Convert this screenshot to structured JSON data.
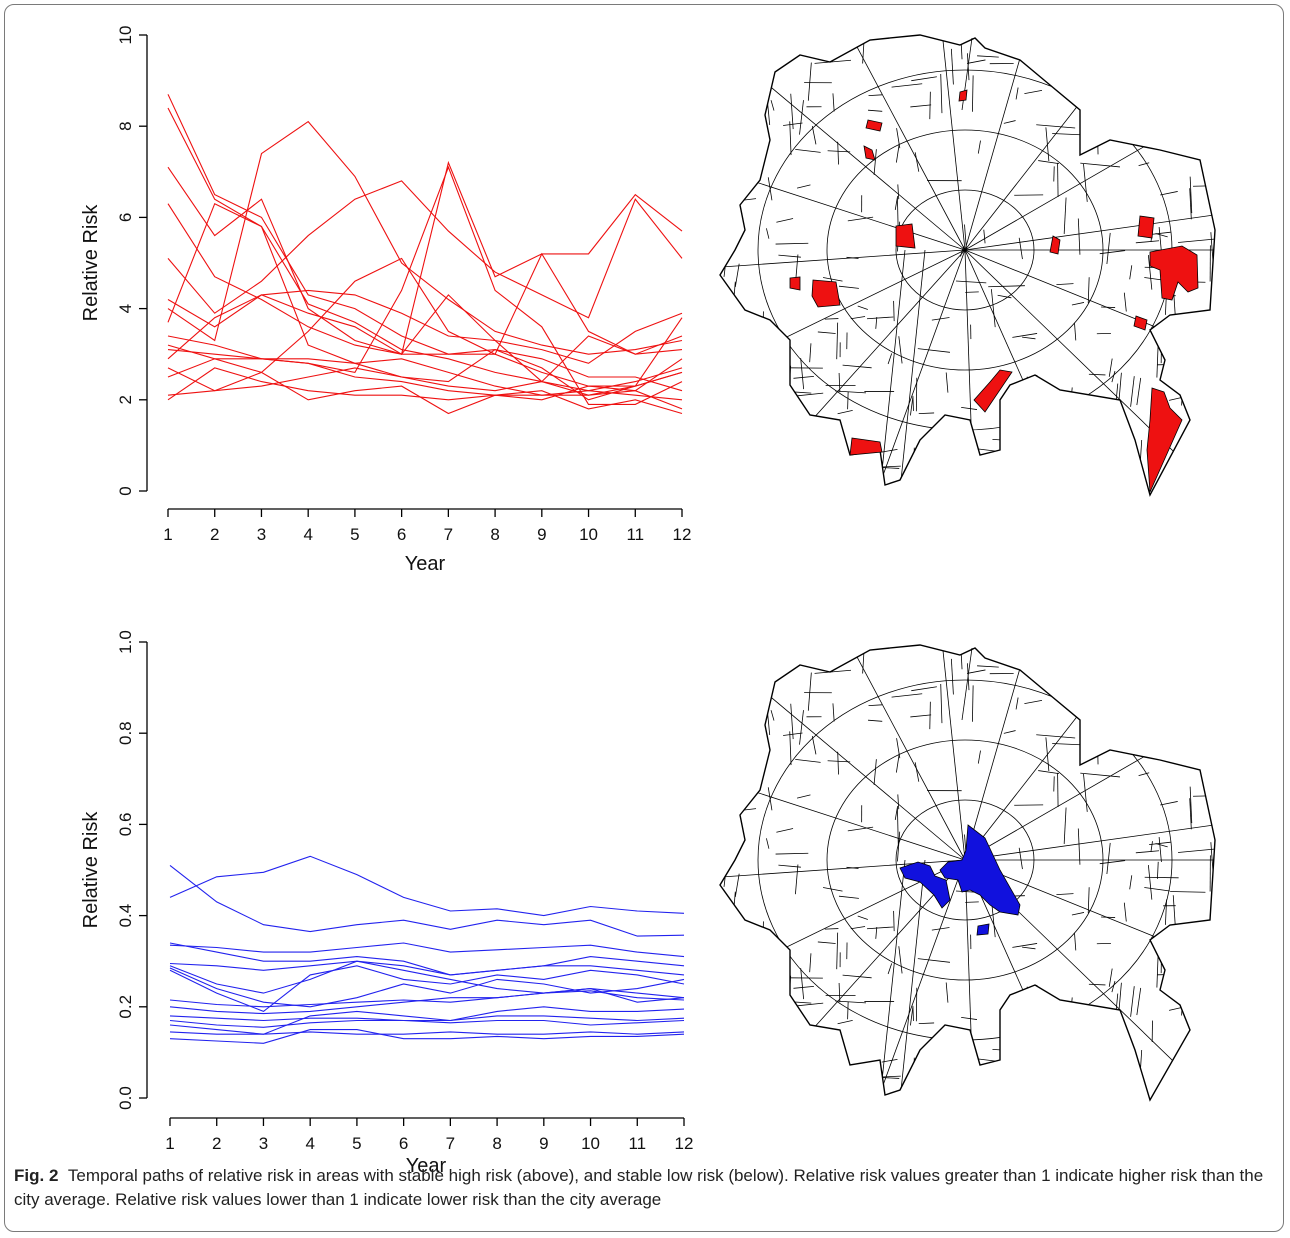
{
  "caption": {
    "label": "Fig. 2",
    "text": "Temporal paths of relative risk in areas with stable high risk (above), and stable low risk (below). Relative risk values greater than 1 indicate higher risk than the city average. Relative risk values lower than 1 indicate lower risk than the city average"
  },
  "colors": {
    "high": "#ee1111",
    "low": "#2222ee",
    "map_high_fill": "#ee1111",
    "map_low_fill": "#1111dd"
  },
  "chart_data": [
    {
      "type": "line",
      "xlabel": "Year",
      "ylabel": "Relative Risk",
      "x": [
        1,
        2,
        3,
        4,
        5,
        6,
        7,
        8,
        9,
        10,
        11,
        12
      ],
      "xlim": [
        1,
        12
      ],
      "ylim": [
        0,
        10
      ],
      "yticks": [
        0,
        2,
        4,
        6,
        8,
        10
      ],
      "ytick_labels": [
        "0",
        "2",
        "4",
        "6",
        "8",
        "10"
      ],
      "grid": false,
      "color": "#ee1111",
      "series": [
        {
          "values": [
            8.7,
            6.5,
            6.0,
            4.3,
            4.0,
            3.4,
            3.0,
            3.0,
            2.6,
            2.3,
            2.3,
            3.8
          ]
        },
        {
          "values": [
            8.4,
            6.4,
            5.8,
            4.1,
            3.7,
            3.1,
            2.9,
            2.6,
            2.4,
            2.2,
            2.1,
            2.0
          ]
        },
        {
          "values": [
            7.1,
            5.6,
            6.4,
            4.0,
            3.3,
            3.0,
            3.0,
            3.1,
            2.9,
            2.5,
            2.5,
            2.2
          ]
        },
        {
          "values": [
            6.3,
            4.7,
            4.2,
            3.6,
            3.2,
            3.0,
            7.2,
            4.7,
            5.2,
            5.2,
            6.5,
            5.7
          ]
        },
        {
          "values": [
            5.1,
            3.9,
            4.6,
            5.6,
            6.4,
            6.8,
            5.7,
            4.8,
            4.3,
            3.8,
            6.4,
            5.1
          ]
        },
        {
          "values": [
            4.2,
            3.6,
            4.3,
            4.4,
            4.3,
            3.9,
            3.4,
            3.3,
            3.1,
            2.8,
            3.5,
            3.9
          ]
        },
        {
          "values": [
            4.0,
            3.3,
            7.4,
            8.1,
            6.9,
            5.0,
            4.2,
            3.5,
            3.2,
            3.0,
            3.1,
            3.3
          ]
        },
        {
          "values": [
            3.7,
            6.3,
            5.8,
            3.2,
            2.8,
            2.5,
            2.4,
            3.1,
            2.7,
            2.0,
            2.3,
            2.6
          ]
        },
        {
          "values": [
            3.4,
            3.2,
            2.9,
            2.8,
            2.6,
            4.4,
            7.1,
            4.4,
            3.6,
            1.9,
            1.9,
            2.4
          ]
        },
        {
          "values": [
            3.2,
            2.9,
            2.9,
            2.9,
            2.8,
            2.9,
            2.6,
            2.3,
            2.1,
            2.1,
            2.2,
            2.9
          ]
        },
        {
          "values": [
            3.1,
            3.0,
            2.9,
            2.8,
            2.5,
            2.4,
            2.2,
            2.1,
            2.1,
            2.2,
            2.4,
            2.7
          ]
        },
        {
          "values": [
            2.9,
            3.8,
            4.3,
            3.9,
            3.6,
            3.0,
            4.3,
            3.3,
            2.4,
            2.1,
            2.3,
            2.6
          ]
        },
        {
          "values": [
            2.7,
            2.2,
            2.3,
            2.5,
            2.7,
            2.5,
            2.3,
            2.2,
            2.4,
            3.4,
            3.0,
            3.4
          ]
        },
        {
          "values": [
            2.5,
            2.9,
            2.6,
            2.0,
            2.2,
            2.3,
            1.7,
            2.1,
            2.0,
            2.3,
            2.2,
            1.8
          ]
        },
        {
          "values": [
            2.0,
            2.7,
            2.4,
            2.2,
            2.1,
            2.1,
            2.0,
            2.1,
            2.2,
            1.8,
            2.0,
            1.7
          ]
        },
        {
          "values": [
            2.1,
            2.2,
            2.6,
            3.5,
            4.6,
            5.1,
            3.5,
            3.0,
            5.2,
            3.5,
            3.0,
            3.1
          ]
        }
      ]
    },
    {
      "type": "line",
      "xlabel": "Year",
      "ylabel": "Relative Risk",
      "x": [
        1,
        2,
        3,
        4,
        5,
        6,
        7,
        8,
        9,
        10,
        11,
        12
      ],
      "xlim": [
        1,
        12
      ],
      "ylim": [
        0,
        1
      ],
      "yticks": [
        0,
        0.2,
        0.4,
        0.6,
        0.8,
        1.0
      ],
      "ytick_labels": [
        "0.0",
        "0.2",
        "0.4",
        "0.6",
        "0.8",
        "1.0"
      ],
      "grid": false,
      "color": "#2222ee",
      "series": [
        {
          "values": [
            0.51,
            0.43,
            0.38,
            0.365,
            0.38,
            0.39,
            0.37,
            0.39,
            0.38,
            0.39,
            0.355,
            0.357
          ]
        },
        {
          "values": [
            0.44,
            0.485,
            0.495,
            0.53,
            0.49,
            0.44,
            0.41,
            0.415,
            0.4,
            0.42,
            0.41,
            0.405
          ]
        },
        {
          "values": [
            0.34,
            0.32,
            0.3,
            0.3,
            0.31,
            0.3,
            0.27,
            0.28,
            0.29,
            0.31,
            0.3,
            0.29
          ]
        },
        {
          "values": [
            0.335,
            0.33,
            0.32,
            0.32,
            0.33,
            0.34,
            0.32,
            0.325,
            0.33,
            0.335,
            0.32,
            0.31
          ]
        },
        {
          "values": [
            0.295,
            0.29,
            0.28,
            0.29,
            0.3,
            0.29,
            0.27,
            0.28,
            0.29,
            0.29,
            0.28,
            0.27
          ]
        },
        {
          "values": [
            0.29,
            0.25,
            0.23,
            0.26,
            0.3,
            0.28,
            0.26,
            0.24,
            0.23,
            0.24,
            0.21,
            0.22
          ]
        },
        {
          "values": [
            0.285,
            0.24,
            0.21,
            0.2,
            0.22,
            0.25,
            0.23,
            0.26,
            0.25,
            0.23,
            0.24,
            0.26
          ]
        },
        {
          "values": [
            0.28,
            0.23,
            0.19,
            0.27,
            0.29,
            0.26,
            0.25,
            0.27,
            0.26,
            0.28,
            0.27,
            0.25
          ]
        },
        {
          "values": [
            0.215,
            0.205,
            0.2,
            0.205,
            0.21,
            0.215,
            0.21,
            0.22,
            0.23,
            0.235,
            0.22,
            0.215
          ]
        },
        {
          "values": [
            0.2,
            0.19,
            0.185,
            0.19,
            0.2,
            0.21,
            0.22,
            0.22,
            0.23,
            0.24,
            0.23,
            0.22
          ]
        },
        {
          "values": [
            0.18,
            0.175,
            0.17,
            0.175,
            0.175,
            0.17,
            0.17,
            0.18,
            0.18,
            0.175,
            0.17,
            0.175
          ]
        },
        {
          "values": [
            0.17,
            0.16,
            0.155,
            0.165,
            0.17,
            0.17,
            0.165,
            0.17,
            0.17,
            0.16,
            0.165,
            0.17
          ]
        },
        {
          "values": [
            0.16,
            0.15,
            0.14,
            0.18,
            0.19,
            0.18,
            0.17,
            0.19,
            0.2,
            0.19,
            0.19,
            0.195
          ]
        },
        {
          "values": [
            0.145,
            0.14,
            0.14,
            0.145,
            0.14,
            0.14,
            0.145,
            0.14,
            0.14,
            0.145,
            0.14,
            0.145
          ]
        },
        {
          "values": [
            0.13,
            0.125,
            0.12,
            0.15,
            0.15,
            0.13,
            0.13,
            0.135,
            0.13,
            0.135,
            0.135,
            0.14
          ]
        }
      ]
    }
  ]
}
